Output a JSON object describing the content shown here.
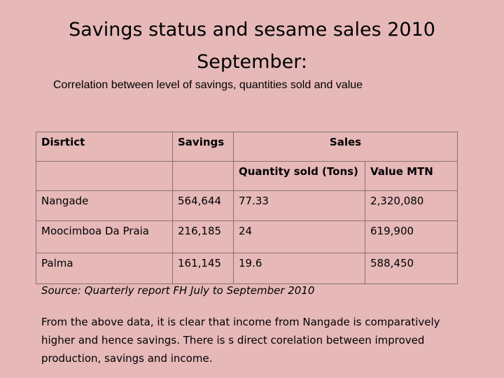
{
  "title": {
    "line1": "Savings status and sesame sales 2010",
    "line2": "September:"
  },
  "subtitle": "Correlation between level of savings, quantities sold and value",
  "table": {
    "headers": {
      "district": "Disrtict",
      "savings": "Savings",
      "sales": "Sales",
      "quantity": "Quantity sold (Tons)",
      "value": "Value  MTN"
    },
    "rows": [
      {
        "district": "Nangade",
        "savings": "564,644",
        "quantity": "77.33",
        "value": "2,320,080"
      },
      {
        "district": "Moocimboa Da Praia",
        "savings": "216,185",
        "quantity": "24",
        "value": "619,900"
      },
      {
        "district": "Palma",
        "savings": "161,145",
        "quantity": "19.6",
        "value": "588,450"
      }
    ]
  },
  "source": "Source: Quarterly report FH July to September 2010",
  "paragraph": "From the above data, it is clear that income from Nangade is comparatively higher and hence savings. There is s direct corelation between improved production, savings and income."
}
